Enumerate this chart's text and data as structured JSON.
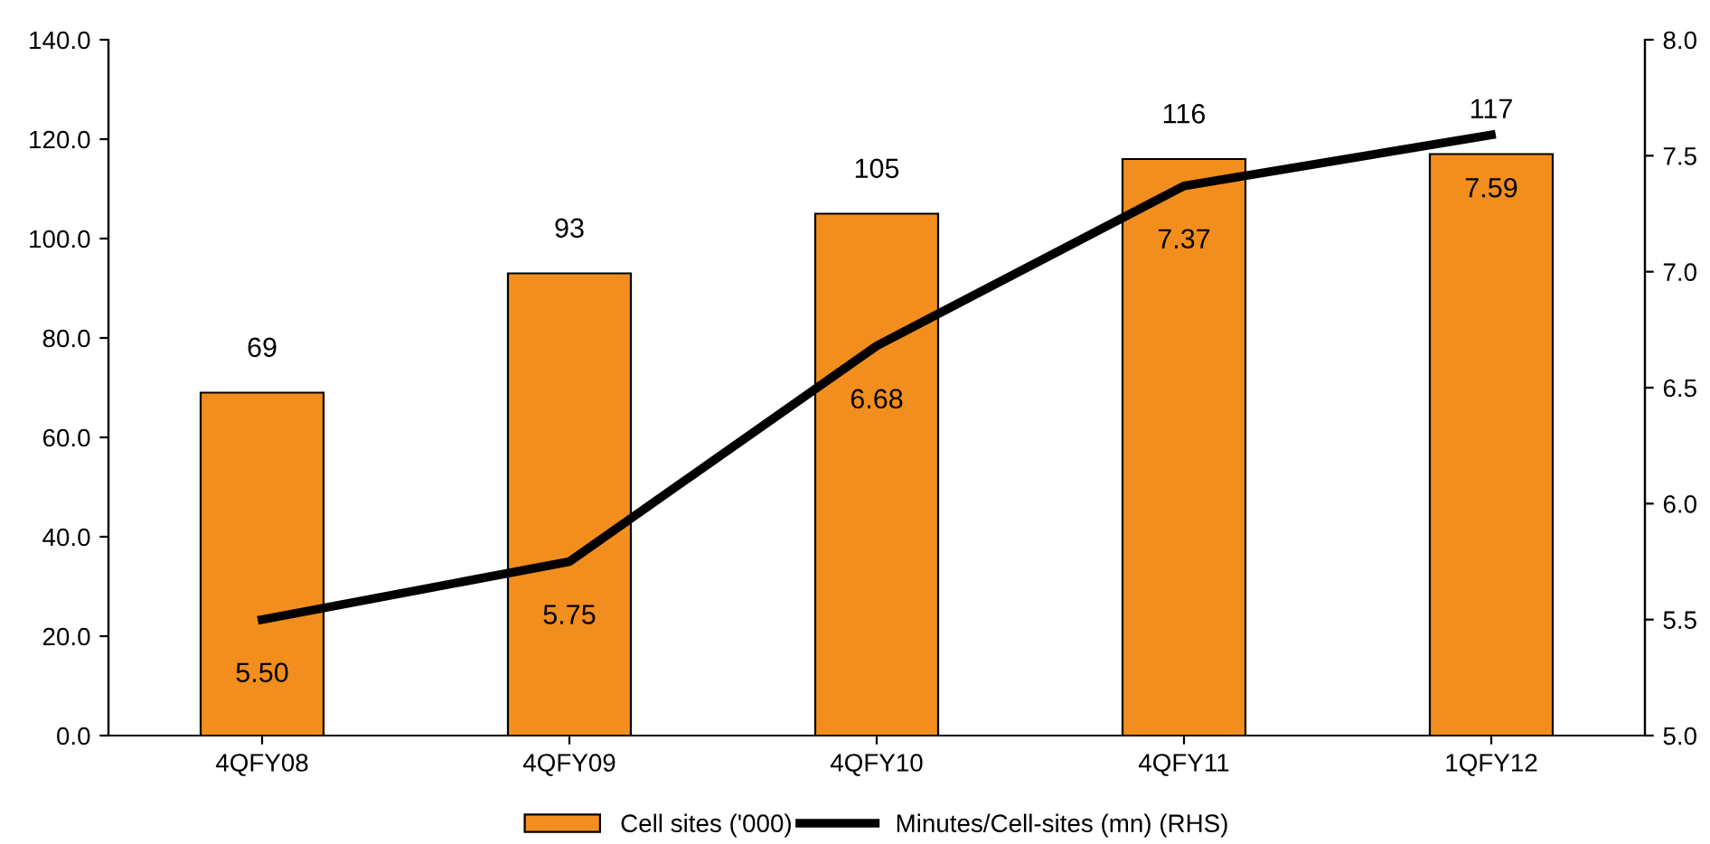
{
  "chart_data": {
    "type": "bar",
    "categories": [
      "4QFY08",
      "4QFY09",
      "4QFY10",
      "4QFY11",
      "1QFY12"
    ],
    "series": [
      {
        "name": "Cell sites ('000)",
        "color": "#f28e1e",
        "values": [
          69,
          93,
          105,
          116,
          117
        ],
        "value_labels": [
          "69",
          "93",
          "105",
          "116",
          "117"
        ]
      },
      {
        "name": "Minutes/Cell-sites (mn) (RHS)",
        "type": "line",
        "axis": "y2",
        "color": "#000000",
        "values": [
          5.5,
          5.75,
          6.68,
          7.37,
          7.59
        ],
        "value_labels": [
          "5.50",
          "5.75",
          "6.68",
          "7.37",
          "7.59"
        ]
      }
    ],
    "ylim": [
      0,
      140
    ],
    "yticks": [
      {
        "value": 0,
        "label": "0.0"
      },
      {
        "value": 20,
        "label": "20.0"
      },
      {
        "value": 40,
        "label": "40.0"
      },
      {
        "value": 60,
        "label": "60.0"
      },
      {
        "value": 80,
        "label": "80.0"
      },
      {
        "value": 100,
        "label": "100.0"
      },
      {
        "value": 120,
        "label": "120.0"
      },
      {
        "value": 140,
        "label": "140.0"
      }
    ],
    "y2lim": [
      5.0,
      8.0
    ],
    "y2ticks": [
      {
        "value": 5.0,
        "label": "5.0"
      },
      {
        "value": 5.5,
        "label": "5.5"
      },
      {
        "value": 6.0,
        "label": "6.0"
      },
      {
        "value": 6.5,
        "label": "6.5"
      },
      {
        "value": 7.0,
        "label": "7.0"
      },
      {
        "value": 7.5,
        "label": "7.5"
      },
      {
        "value": 8.0,
        "label": "8.0"
      }
    ],
    "grid": false,
    "legend": "bottom",
    "marker": "none",
    "line_style": "solid"
  }
}
